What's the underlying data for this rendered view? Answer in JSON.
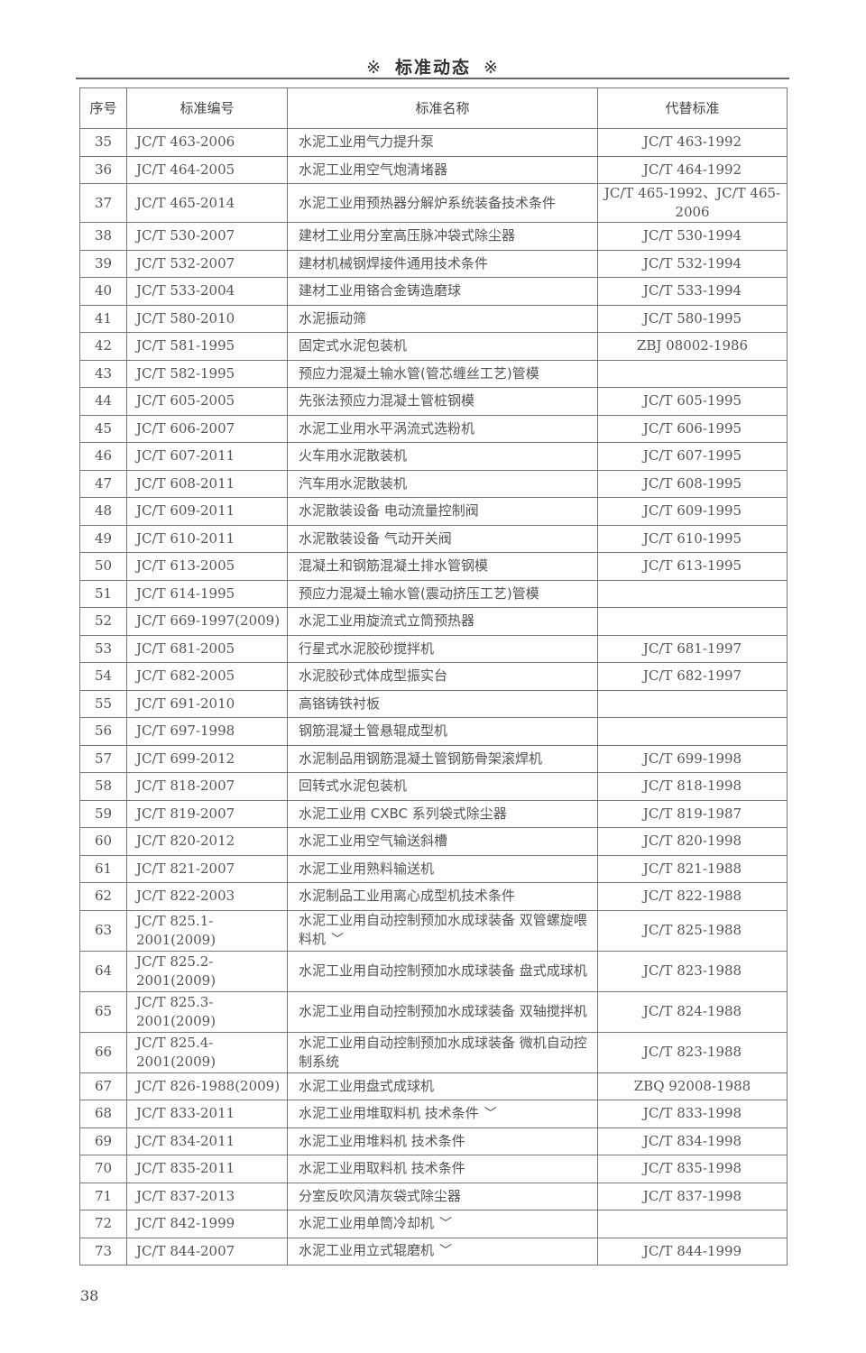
{
  "header": {
    "mark": "※",
    "title": "标准动态"
  },
  "table": {
    "columns": [
      "序号",
      "标准编号",
      "标准名称",
      "代替标准"
    ],
    "rows": [
      {
        "no": "35",
        "code": "JC/T 463-2006",
        "name": "水泥工业用气力提升泵",
        "replaces": "JC/T 463-1992"
      },
      {
        "no": "36",
        "code": "JC/T 464-2005",
        "name": "水泥工业用空气炮清堵器",
        "replaces": "JC/T 464-1992"
      },
      {
        "no": "37",
        "code": "JC/T 465-2014",
        "name": "水泥工业用预热器分解炉系统装备技术条件",
        "replaces": "JC/T 465-1992、JC/T 465-2006"
      },
      {
        "no": "38",
        "code": "JC/T 530-2007",
        "name": "建材工业用分室高压脉冲袋式除尘器",
        "replaces": "JC/T 530-1994"
      },
      {
        "no": "39",
        "code": "JC/T 532-2007",
        "name": "建材机械钢焊接件通用技术条件",
        "replaces": "JC/T 532-1994"
      },
      {
        "no": "40",
        "code": "JC/T 533-2004",
        "name": "建材工业用铬合金铸造磨球",
        "replaces": "JC/T 533-1994"
      },
      {
        "no": "41",
        "code": "JC/T 580-2010",
        "name": "水泥振动筛",
        "replaces": "JC/T 580-1995"
      },
      {
        "no": "42",
        "code": "JC/T 581-1995",
        "name": "固定式水泥包装机",
        "replaces": "ZBJ 08002-1986"
      },
      {
        "no": "43",
        "code": "JC/T 582-1995",
        "name": "预应力混凝土输水管(管芯缠丝工艺)管模",
        "replaces": ""
      },
      {
        "no": "44",
        "code": "JC/T 605-2005",
        "name": "先张法预应力混凝土管桩钢模",
        "replaces": "JC/T 605-1995"
      },
      {
        "no": "45",
        "code": "JC/T 606-2007",
        "name": "水泥工业用水平涡流式选粉机",
        "replaces": "JC/T 606-1995"
      },
      {
        "no": "46",
        "code": "JC/T 607-2011",
        "name": "火车用水泥散装机",
        "replaces": "JC/T 607-1995"
      },
      {
        "no": "47",
        "code": "JC/T 608-2011",
        "name": "汽车用水泥散装机",
        "replaces": "JC/T 608-1995"
      },
      {
        "no": "48",
        "code": "JC/T 609-2011",
        "name": "水泥散装设备 电动流量控制阀",
        "replaces": "JC/T 609-1995"
      },
      {
        "no": "49",
        "code": "JC/T 610-2011",
        "name": "水泥散装设备 气动开关阀",
        "replaces": "JC/T 610-1995"
      },
      {
        "no": "50",
        "code": "JC/T 613-2005",
        "name": "混凝土和钢筋混凝土排水管钢模",
        "replaces": "JC/T 613-1995"
      },
      {
        "no": "51",
        "code": "JC/T 614-1995",
        "name": "预应力混凝土输水管(震动挤压工艺)管模",
        "replaces": ""
      },
      {
        "no": "52",
        "code": "JC/T 669-1997(2009)",
        "name": "水泥工业用旋流式立筒预热器",
        "replaces": ""
      },
      {
        "no": "53",
        "code": "JC/T 681-2005",
        "name": "行星式水泥胶砂搅拌机",
        "replaces": "JC/T 681-1997"
      },
      {
        "no": "54",
        "code": "JC/T 682-2005",
        "name": "水泥胶砂式体成型振实台",
        "replaces": "JC/T 682-1997"
      },
      {
        "no": "55",
        "code": "JC/T 691-2010",
        "name": "高铬铸铁衬板",
        "replaces": ""
      },
      {
        "no": "56",
        "code": "JC/T 697-1998",
        "name": "钢筋混凝土管悬辊成型机",
        "replaces": ""
      },
      {
        "no": "57",
        "code": "JC/T 699-2012",
        "name": "水泥制品用钢筋混凝土管钢筋骨架滚焊机",
        "replaces": "JC/T 699-1998"
      },
      {
        "no": "58",
        "code": "JC/T 818-2007",
        "name": "回转式水泥包装机",
        "replaces": "JC/T 818-1998"
      },
      {
        "no": "59",
        "code": "JC/T 819-2007",
        "name": "水泥工业用 CXBC 系列袋式除尘器",
        "replaces": "JC/T 819-1987"
      },
      {
        "no": "60",
        "code": "JC/T 820-2012",
        "name": "水泥工业用空气输送斜槽",
        "replaces": "JC/T 820-1998"
      },
      {
        "no": "61",
        "code": "JC/T 821-2007",
        "name": "水泥工业用熟料输送机",
        "replaces": "JC/T 821-1988"
      },
      {
        "no": "62",
        "code": "JC/T 822-2003",
        "name": "水泥制品工业用离心成型机技术条件",
        "replaces": "JC/T 822-1988"
      },
      {
        "no": "63",
        "code": "JC/T 825.1-2001(2009)",
        "name": "水泥工业用自动控制预加水成球装备 双管螺旋喂料机",
        "replaces": "JC/T 825-1988",
        "check": "﹀",
        "tall": true
      },
      {
        "no": "64",
        "code": "JC/T 825.2-2001(2009)",
        "name": "水泥工业用自动控制预加水成球装备 盘式成球机",
        "replaces": "JC/T 823-1988",
        "tall": true
      },
      {
        "no": "65",
        "code": "JC/T 825.3-2001(2009)",
        "name": "水泥工业用自动控制预加水成球装备 双轴搅拌机",
        "replaces": "JC/T 824-1988",
        "tall": true
      },
      {
        "no": "66",
        "code": "JC/T 825.4-2001(2009)",
        "name": "水泥工业用自动控制预加水成球装备 微机自动控制系统",
        "replaces": "JC/T 823-1988",
        "tall": true
      },
      {
        "no": "67",
        "code": "JC/T 826-1988(2009)",
        "name": "水泥工业用盘式成球机",
        "replaces": "ZBQ 92008-1988"
      },
      {
        "no": "68",
        "code": "JC/T 833-2011",
        "name": "水泥工业用堆取料机 技术条件",
        "replaces": "JC/T 833-1998",
        "check": "﹀"
      },
      {
        "no": "69",
        "code": "JC/T 834-2011",
        "name": "水泥工业用堆料机 技术条件",
        "replaces": "JC/T 834-1998"
      },
      {
        "no": "70",
        "code": "JC/T 835-2011",
        "name": "水泥工业用取料机 技术条件",
        "replaces": "JC/T 835-1998"
      },
      {
        "no": "71",
        "code": "JC/T 837-2013",
        "name": "分室反吹风清灰袋式除尘器",
        "replaces": "JC/T 837-1998"
      },
      {
        "no": "72",
        "code": "JC/T 842-1999",
        "name": "水泥工业用单筒冷却机",
        "replaces": "",
        "check": "﹀"
      },
      {
        "no": "73",
        "code": "JC/T 844-2007",
        "name": "水泥工业用立式辊磨机",
        "replaces": "JC/T 844-1999",
        "check": "﹀"
      }
    ]
  },
  "footer": {
    "page_number": "38"
  }
}
